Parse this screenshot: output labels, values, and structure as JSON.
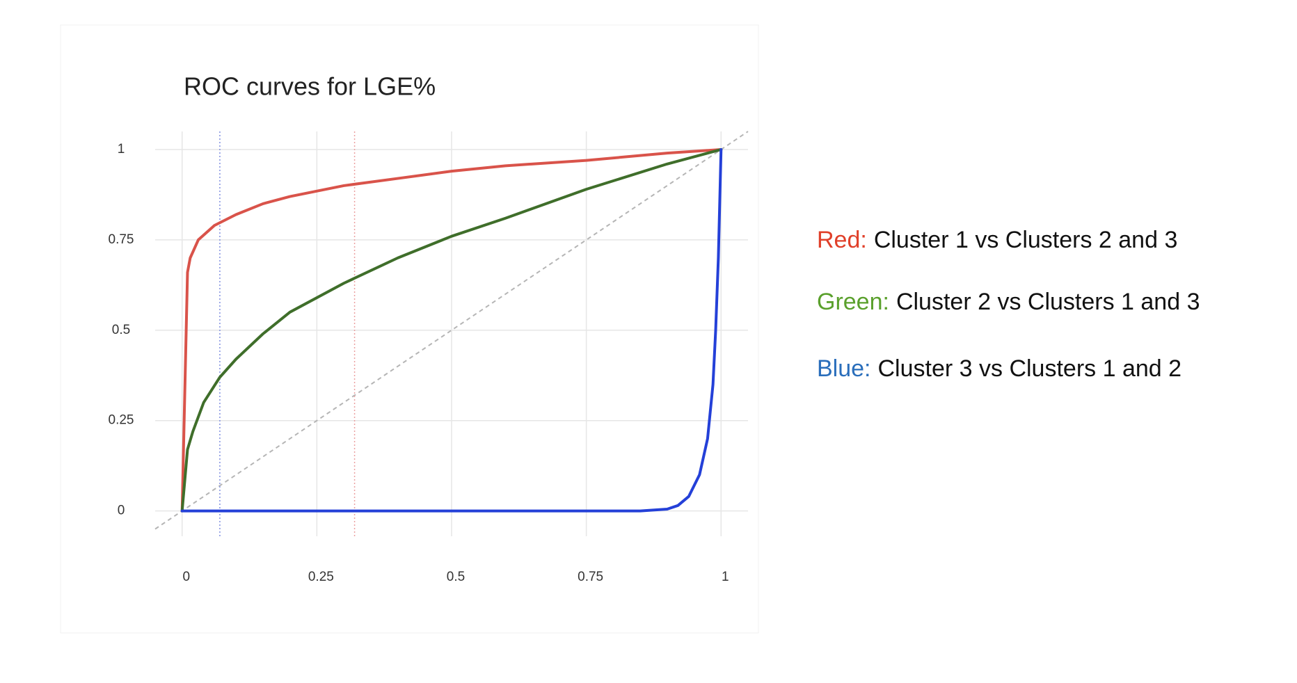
{
  "chart_data": {
    "type": "line",
    "title": "ROC curves for LGE%",
    "xlim": [
      -0.05,
      1.05
    ],
    "ylim": [
      -0.07,
      1.05
    ],
    "xticks": [
      0,
      0.25,
      0.5,
      0.75,
      1
    ],
    "yticks": [
      0,
      0.25,
      0.5,
      0.75,
      1
    ],
    "grid": true,
    "vlines": [
      {
        "x": 0.07,
        "color": "#7f8fe0"
      },
      {
        "x": 0.32,
        "color": "#eba0a0"
      }
    ],
    "series": [
      {
        "name": "Cluster 1 vs Clusters 2 and 3",
        "legend_prefix": "Red:",
        "label_color": "#e0402a",
        "color": "#d9534a",
        "x": [
          0,
          0.01,
          0.015,
          0.03,
          0.06,
          0.1,
          0.15,
          0.2,
          0.3,
          0.4,
          0.5,
          0.6,
          0.75,
          0.9,
          1
        ],
        "values": [
          0,
          0.66,
          0.7,
          0.75,
          0.79,
          0.82,
          0.85,
          0.87,
          0.9,
          0.92,
          0.94,
          0.955,
          0.97,
          0.99,
          1
        ]
      },
      {
        "name": "Cluster 2 vs Clusters 1 and 3",
        "legend_prefix": "Green:",
        "label_color": "#5aa02c",
        "color": "#3f6e2a",
        "x": [
          0,
          0.01,
          0.02,
          0.04,
          0.07,
          0.1,
          0.15,
          0.2,
          0.3,
          0.4,
          0.5,
          0.6,
          0.75,
          0.9,
          1
        ],
        "values": [
          0,
          0.17,
          0.22,
          0.3,
          0.37,
          0.42,
          0.49,
          0.55,
          0.63,
          0.7,
          0.76,
          0.81,
          0.89,
          0.96,
          1
        ]
      },
      {
        "name": "Cluster 3 vs Clusters 1 and 2",
        "legend_prefix": "Blue:",
        "label_color": "#2a6ebb",
        "color": "#2440d8",
        "x": [
          0,
          0.85,
          0.9,
          0.92,
          0.94,
          0.96,
          0.975,
          0.985,
          0.99,
          0.995,
          1
        ],
        "values": [
          0,
          0,
          0.005,
          0.015,
          0.04,
          0.1,
          0.2,
          0.35,
          0.5,
          0.7,
          1
        ]
      }
    ]
  }
}
